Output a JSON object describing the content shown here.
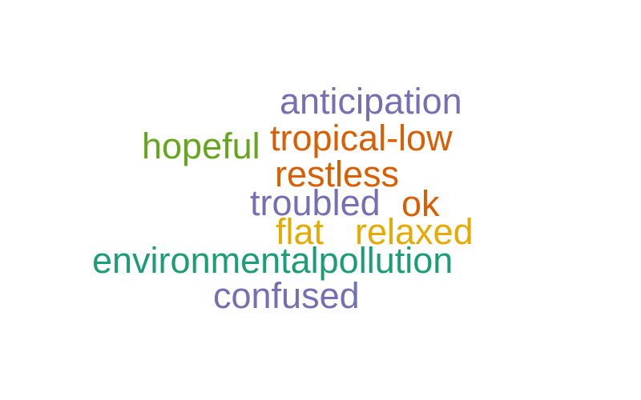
{
  "words": [
    {
      "text": "anticipation",
      "color": "#7570b3"
    },
    {
      "text": "tropical-low",
      "color": "#d95f02"
    },
    {
      "text": "hopeful",
      "color": "#66a61e"
    },
    {
      "text": "restless",
      "color": "#d95f02"
    },
    {
      "text": "troubled",
      "color": "#7570b3"
    },
    {
      "text": "ok",
      "color": "#d95f02"
    },
    {
      "text": "flat",
      "color": "#e6ab02"
    },
    {
      "text": "relaxed",
      "color": "#e6ab02"
    },
    {
      "text": "environmentalpollution",
      "color": "#1b9e77"
    },
    {
      "text": "confused",
      "color": "#7570b3"
    }
  ]
}
